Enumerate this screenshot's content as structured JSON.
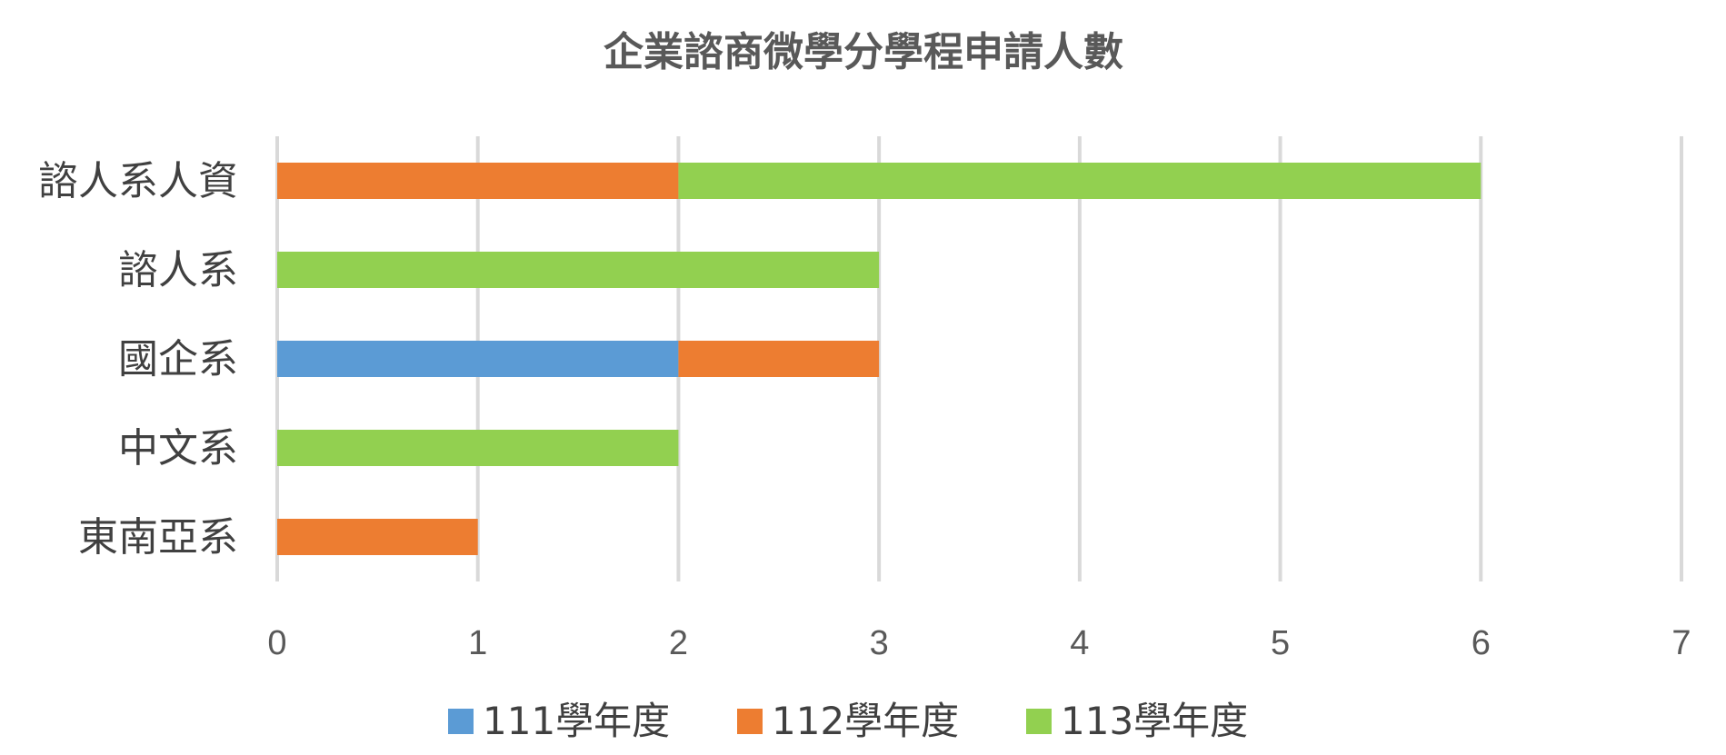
{
  "chart_data": {
    "type": "bar",
    "orientation": "horizontal",
    "stacked": true,
    "title": "企業諮商微學分學程申請人數",
    "categories": [
      "諮人系人資",
      "諮人系",
      "國企系",
      "中文系",
      "東南亞系"
    ],
    "series": [
      {
        "name": "111學年度",
        "color": "#5B9BD5",
        "values": [
          0,
          0,
          2,
          0,
          0
        ]
      },
      {
        "name": "112學年度",
        "color": "#ED7D31",
        "values": [
          2,
          0,
          1,
          0,
          1
        ]
      },
      {
        "name": "113學年度",
        "color": "#92D050",
        "values": [
          4,
          3,
          0,
          2,
          0
        ]
      }
    ],
    "x_ticks": [
      "0",
      "1",
      "2",
      "3",
      "4",
      "5",
      "6",
      "7"
    ],
    "xlim": [
      0,
      7
    ],
    "grid": true,
    "legend_position": "bottom"
  }
}
